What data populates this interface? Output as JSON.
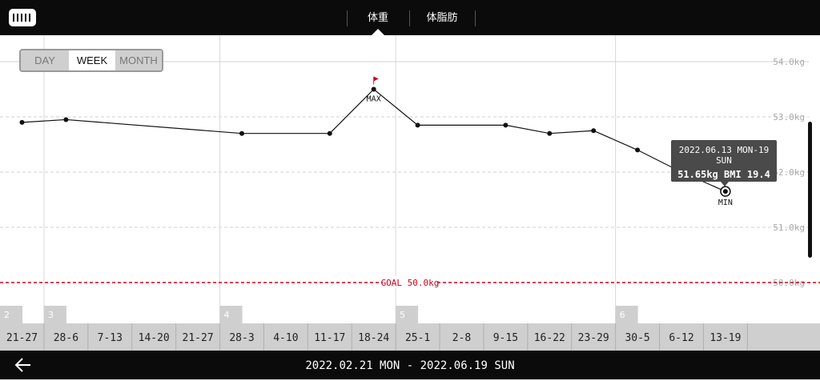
{
  "header": {
    "tabs": [
      {
        "label": "体重"
      },
      {
        "label": "体脂肪"
      }
    ],
    "active_tab": 0
  },
  "period_selector": {
    "options": [
      {
        "label": "DAY"
      },
      {
        "label": "WEEK"
      },
      {
        "label": "MONTH"
      }
    ],
    "active": 1
  },
  "footer": {
    "date_range": "2022.02.21 MON - 2022.06.19 SUN"
  },
  "tooltip": {
    "line1": "2022.06.13 MON-19 SUN",
    "line2": "51.65kg  BMI 19.4"
  },
  "colors": {
    "bar": "#0b0b0b",
    "goal": "#d0021b",
    "flag": "#d0021b",
    "line": "#111111",
    "tile": "#cfcfcf"
  },
  "chart_data": {
    "type": "line",
    "ylim": [
      49.5,
      54.5
    ],
    "y_ticks": [
      {
        "value": 54.0,
        "label": "54.0kg"
      },
      {
        "value": 53.0,
        "label": "53.0kg"
      },
      {
        "value": 52.0,
        "label": "52.0kg"
      },
      {
        "value": 51.0,
        "label": "51.0kg"
      },
      {
        "value": 50.0,
        "label": "50.0kg"
      }
    ],
    "categories": [
      "21-27",
      "28-6",
      "7-13",
      "14-20",
      "21-27",
      "28-3",
      "4-10",
      "11-17",
      "18-24",
      "25-1",
      "2-8",
      "9-15",
      "16-22",
      "23-29",
      "30-5",
      "6-12",
      "13-19"
    ],
    "month_markers": [
      {
        "index": 0,
        "label": "2"
      },
      {
        "index": 1,
        "label": "3"
      },
      {
        "index": 5,
        "label": "4"
      },
      {
        "index": 9,
        "label": "5"
      },
      {
        "index": 14,
        "label": "6"
      }
    ],
    "series": [
      {
        "values": [
          52.9,
          52.95,
          null,
          null,
          null,
          52.7,
          null,
          52.7,
          53.5,
          52.85,
          null,
          52.85,
          52.7,
          52.75,
          52.4,
          52.0,
          51.65
        ]
      }
    ],
    "max": {
      "index": 8,
      "label": "MAX"
    },
    "min": {
      "index": 16,
      "label": "MIN"
    },
    "goal": {
      "value": 50.0,
      "label": "GOAL 50.0kg"
    },
    "selected_index": 16
  }
}
